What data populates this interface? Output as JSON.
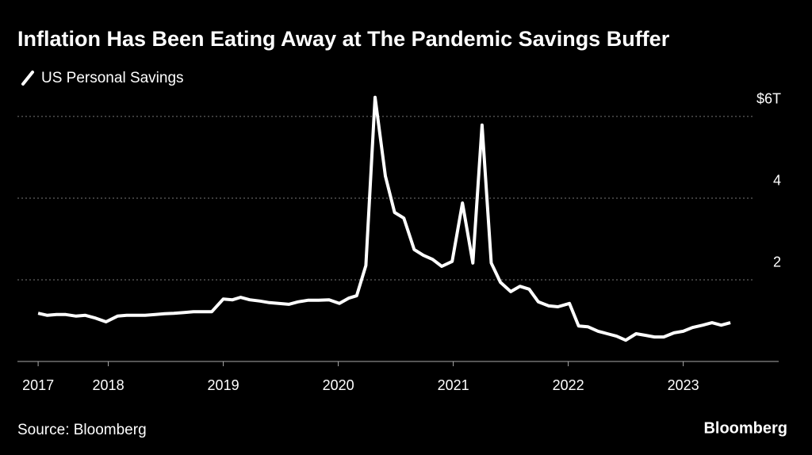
{
  "chart_data": {
    "type": "line",
    "title": "Inflation Has Been Eating Away at The Pandemic Savings Buffer",
    "source": "Source: Bloomberg",
    "logo": "Bloomberg",
    "x": [
      2017.39,
      2017.47,
      2017.55,
      2017.63,
      2017.72,
      2017.8,
      2017.88,
      2017.98,
      2018.08,
      2018.16,
      2018.24,
      2018.32,
      2018.41,
      2018.49,
      2018.57,
      2018.66,
      2018.74,
      2018.82,
      2018.9,
      2019.0,
      2019.08,
      2019.15,
      2019.23,
      2019.32,
      2019.4,
      2019.48,
      2019.57,
      2019.65,
      2019.74,
      2019.83,
      2019.92,
      2020.01,
      2020.09,
      2020.16,
      2020.24,
      2020.32,
      2020.41,
      2020.49,
      2020.57,
      2020.66,
      2020.74,
      2020.82,
      2020.9,
      2020.99,
      2021.08,
      2021.17,
      2021.25,
      2021.33,
      2021.41,
      2021.5,
      2021.58,
      2021.66,
      2021.74,
      2021.83,
      2021.91,
      2022.01,
      2022.09,
      2022.17,
      2022.26,
      2022.34,
      2022.42,
      2022.5,
      2022.59,
      2022.67,
      2022.75,
      2022.83,
      2022.92,
      2023.0,
      2023.08,
      2023.17,
      2023.25,
      2023.33,
      2023.41
    ],
    "series": [
      {
        "name": "US Personal Savings",
        "color": "#ffffff",
        "values": [
          1.18,
          1.13,
          1.15,
          1.15,
          1.11,
          1.13,
          1.07,
          0.97,
          1.11,
          1.13,
          1.13,
          1.13,
          1.15,
          1.17,
          1.18,
          1.2,
          1.22,
          1.22,
          1.22,
          1.53,
          1.51,
          1.57,
          1.51,
          1.48,
          1.44,
          1.42,
          1.4,
          1.46,
          1.5,
          1.5,
          1.51,
          1.42,
          1.55,
          1.61,
          2.35,
          6.47,
          4.54,
          3.65,
          3.51,
          2.74,
          2.6,
          2.5,
          2.33,
          2.45,
          3.88,
          2.41,
          5.79,
          2.41,
          1.94,
          1.71,
          1.84,
          1.77,
          1.46,
          1.36,
          1.34,
          1.42,
          0.87,
          0.85,
          0.74,
          0.68,
          0.62,
          0.52,
          0.68,
          0.64,
          0.6,
          0.6,
          0.7,
          0.74,
          0.83,
          0.89,
          0.95,
          0.89,
          0.95
        ]
      }
    ],
    "xlim": [
      2017.21,
      2023.83
    ],
    "xticks": [
      {
        "value": 2017.39,
        "label": "2017"
      },
      2018,
      2019,
      2020,
      2021,
      2022,
      2023
    ],
    "ylim": [
      0,
      6.6
    ],
    "yticks": [
      2,
      4,
      {
        "value": 6,
        "label": "$6T"
      }
    ],
    "grid": true
  }
}
